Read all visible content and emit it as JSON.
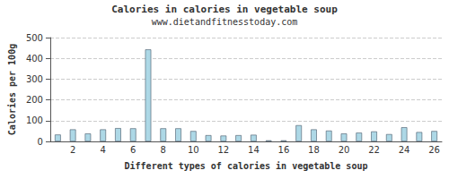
{
  "chart_data": {
    "type": "bar",
    "title": "Calories in calories in vegetable soup",
    "subtitle": "www.dietandfitnesstoday.com",
    "x_label": "Different types of calories in vegetable soup",
    "y_label": "Calories per 100g",
    "categories": [
      null,
      "2",
      null,
      "4",
      null,
      "6",
      null,
      "8",
      null,
      "10",
      null,
      "12",
      null,
      "14",
      null,
      "16",
      null,
      "18",
      null,
      "20",
      null,
      "22",
      null,
      "24",
      null,
      "26"
    ],
    "values": [
      33,
      58,
      38,
      58,
      64,
      63,
      443,
      63,
      63,
      50,
      30,
      28,
      30,
      32,
      5,
      5,
      78,
      58,
      52,
      38,
      42,
      48,
      35,
      68,
      45,
      50
    ],
    "color": "#add8e6",
    "ylim": [
      0,
      500
    ],
    "yticks": [
      0,
      100,
      200,
      300,
      400,
      500
    ],
    "grid": true
  }
}
